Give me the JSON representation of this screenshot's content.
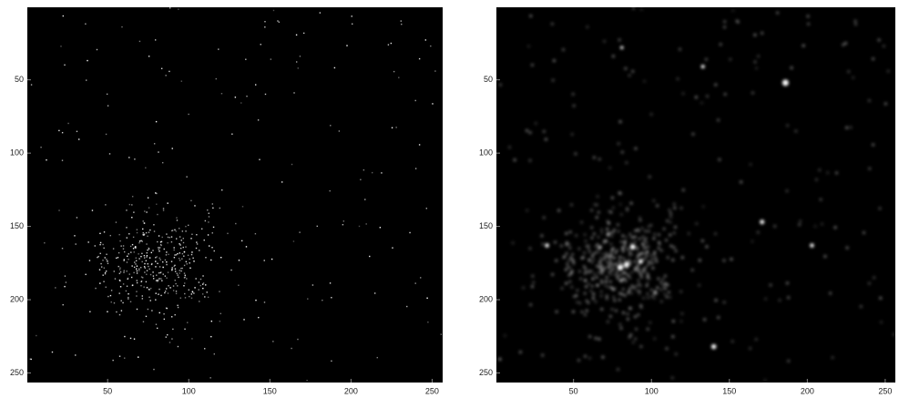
{
  "chart_data": [
    {
      "type": "image",
      "xlim": [
        0.5,
        256.5
      ],
      "ylim": [
        256.5,
        0.5
      ],
      "xticks": [
        50,
        100,
        150,
        200,
        250
      ],
      "yticks": [
        50,
        100,
        150,
        200,
        250
      ],
      "style": "sharp"
    },
    {
      "type": "image",
      "xlim": [
        0.5,
        256.5
      ],
      "ylim": [
        256.5,
        0.5
      ],
      "xticks": [
        50,
        100,
        150,
        200,
        250
      ],
      "yticks": [
        50,
        100,
        150,
        200,
        250
      ],
      "style": "blurred"
    }
  ]
}
